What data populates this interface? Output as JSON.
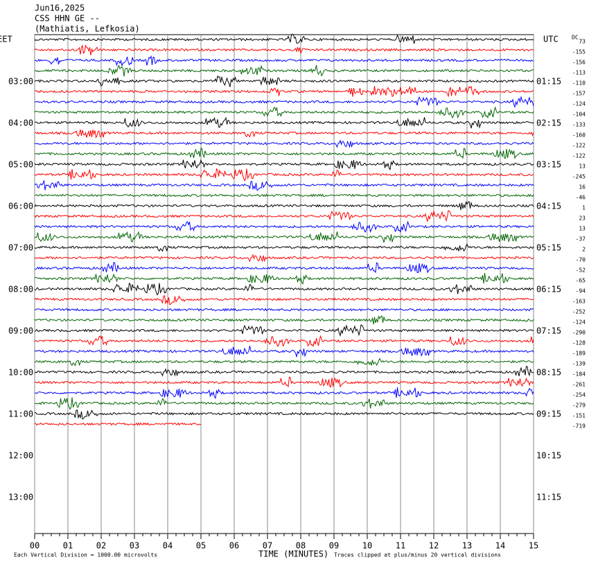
{
  "chart_data": {
    "type": "helicorder",
    "title_lines": [
      "Jun16,2025",
      "CSS HHN GE --",
      "(Mathiatis, Lefkosia)"
    ],
    "left_zone": "EET",
    "right_zone": "UTC",
    "left_times": [
      "03:00",
      "04:00",
      "05:00",
      "06:00",
      "07:00",
      "08:00",
      "09:00",
      "10:00",
      "11:00",
      "12:00",
      "13:00"
    ],
    "right_times": [
      "01:15",
      "02:15",
      "03:15",
      "04:15",
      "05:15",
      "06:15",
      "07:15",
      "08:15",
      "09:15",
      "10:15",
      "11:15"
    ],
    "dc_label": "DC",
    "dc_offsets": [
      73,
      -155,
      -156,
      -113,
      -110,
      -157,
      -124,
      -104,
      -133,
      -160,
      -122,
      -122,
      13,
      -245,
      16,
      -46,
      1,
      23,
      13,
      -37,
      2,
      -70,
      -52,
      -65,
      -94,
      -163,
      -252,
      -124,
      -290,
      -128,
      -189,
      -139,
      -184,
      -261,
      -254,
      -279,
      -151,
      -719
    ],
    "colors": [
      "#000000",
      "#ff0000",
      "#0000ff",
      "#006400"
    ],
    "xlim": [
      0,
      15
    ],
    "xticks": [
      {
        "value": 0,
        "label": "00"
      },
      {
        "value": 1,
        "label": "01"
      },
      {
        "value": 2,
        "label": "02"
      },
      {
        "value": 3,
        "label": "03"
      },
      {
        "value": 4,
        "label": "04"
      },
      {
        "value": 5,
        "label": "05"
      },
      {
        "value": 6,
        "label": "06"
      },
      {
        "value": 7,
        "label": "07"
      },
      {
        "value": 8,
        "label": "08"
      },
      {
        "value": 9,
        "label": "09"
      },
      {
        "value": 10,
        "label": "10"
      },
      {
        "value": 11,
        "label": "11"
      },
      {
        "value": 12,
        "label": "12"
      },
      {
        "value": 13,
        "label": "13"
      },
      {
        "value": 14,
        "label": "14"
      },
      {
        "value": 15,
        "label": "15"
      }
    ],
    "xlabel": "TIME (MINUTES)",
    "scale_note": "Each Vertical Division = 1000.00 microvolts",
    "clip_note": "Traces clipped at plus/minus 20 vertical divisions"
  }
}
